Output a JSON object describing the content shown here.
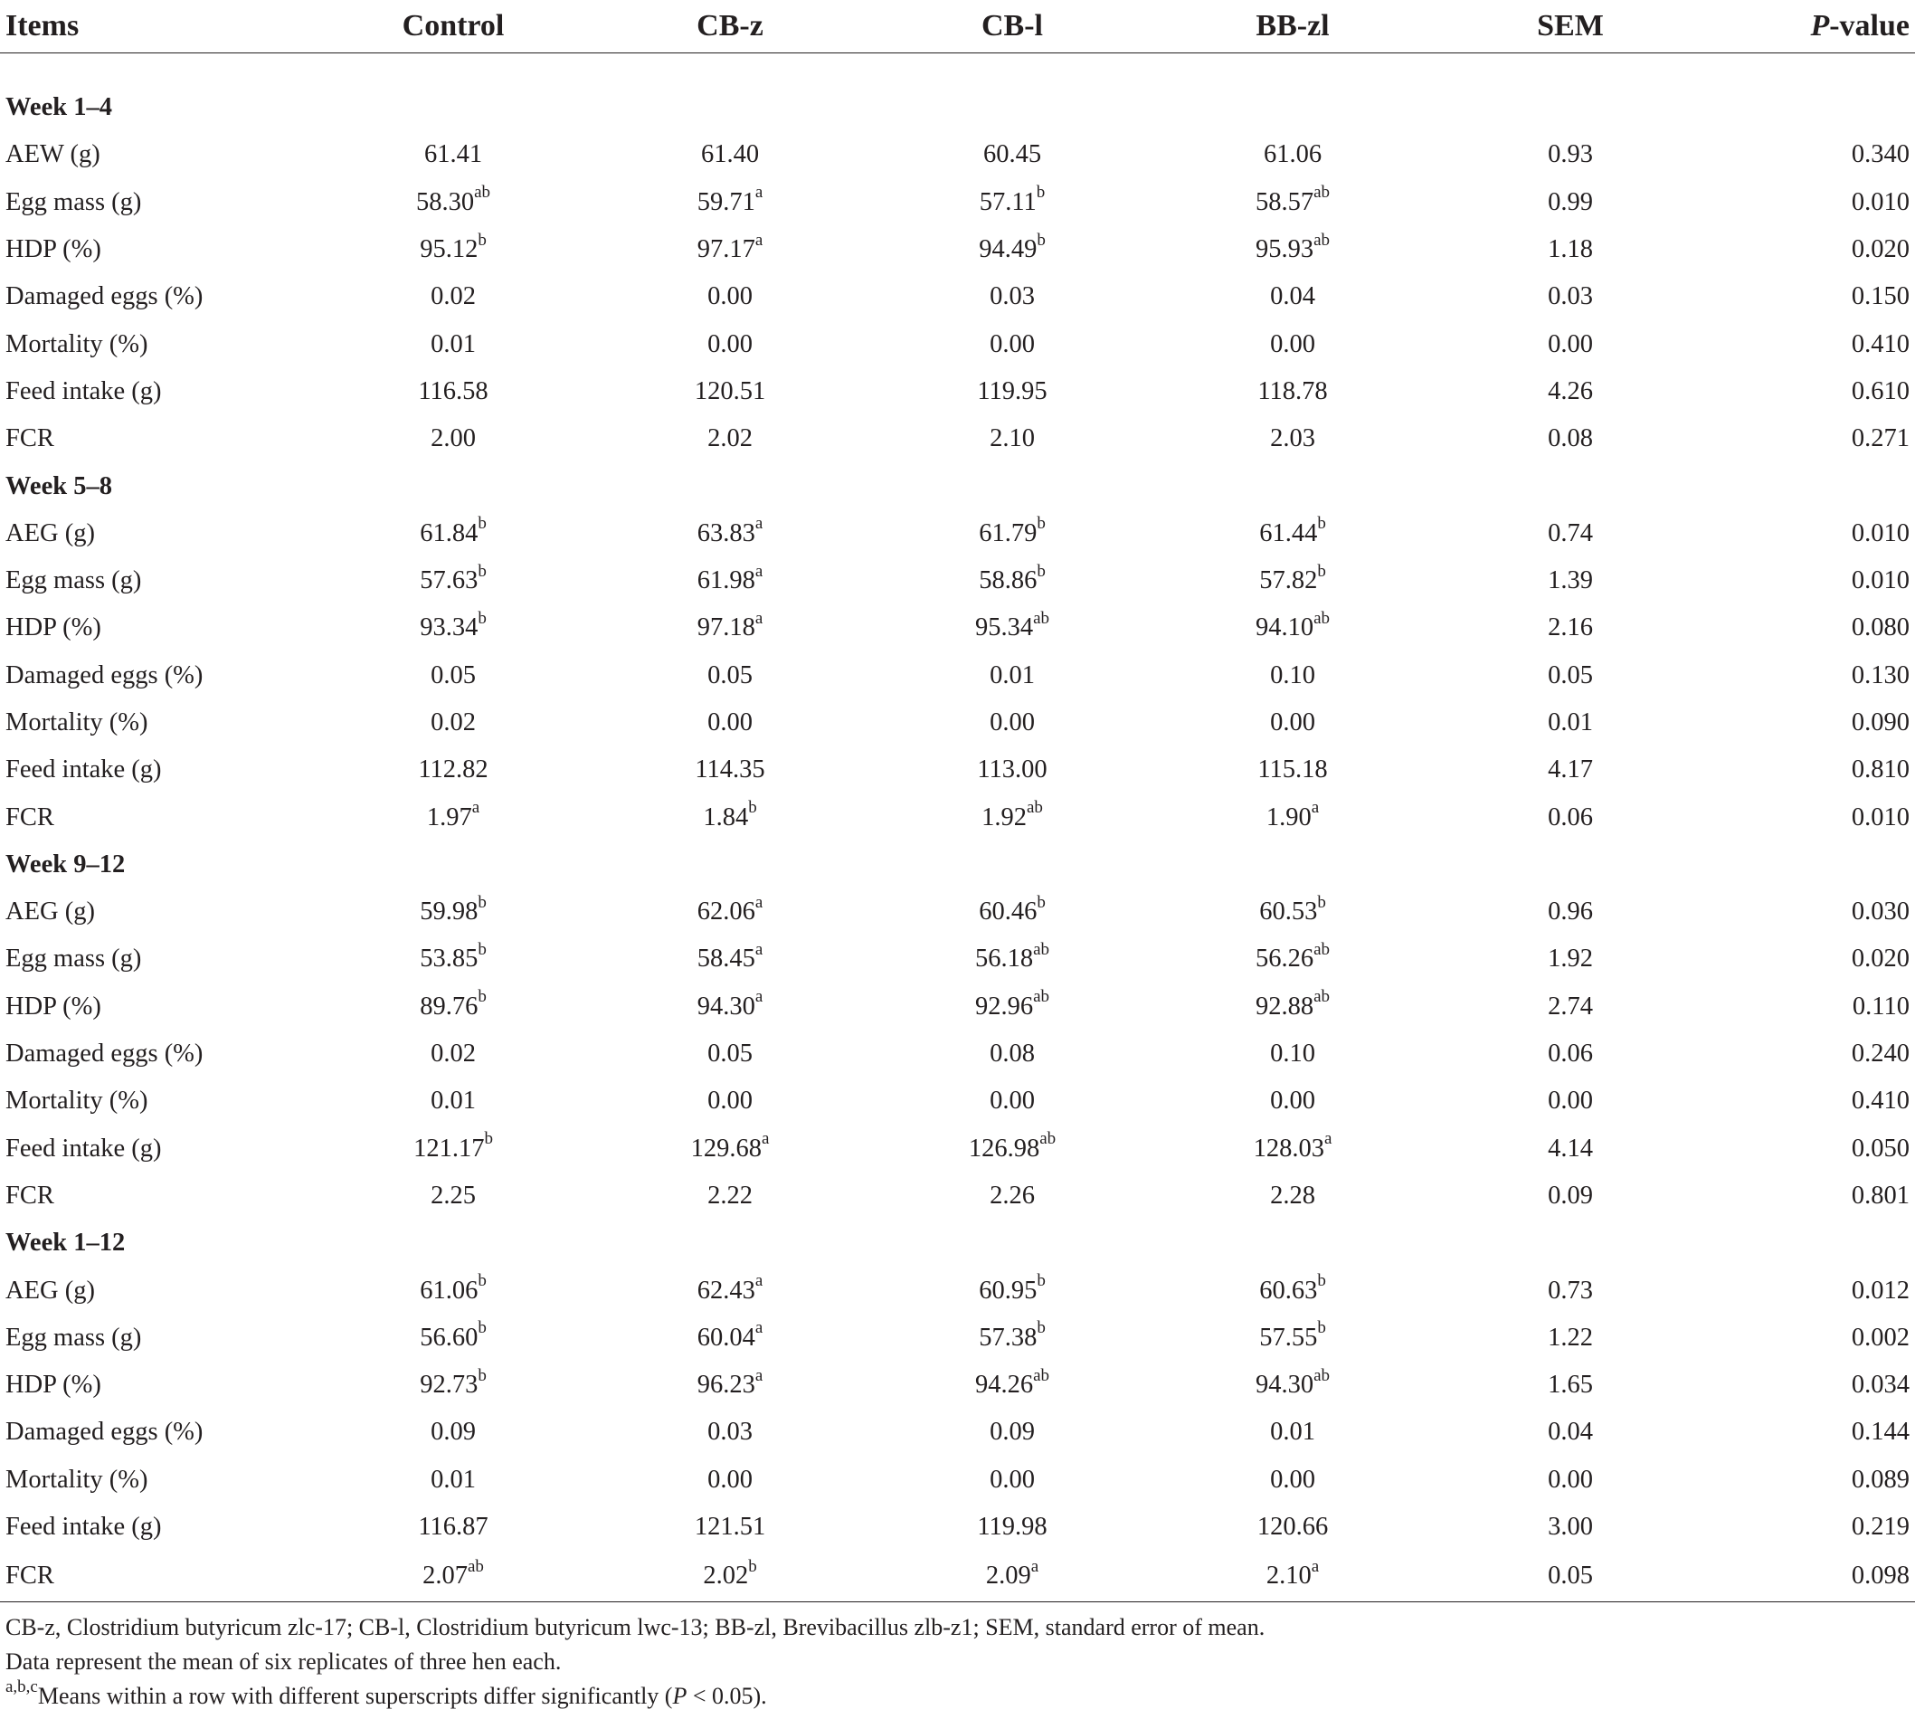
{
  "headers": [
    "Items",
    "Control",
    "CB-z",
    "CB-l",
    "BB-zl",
    "SEM",
    "P",
    "-value"
  ],
  "sections": [
    {
      "title": "Week 1–4",
      "rows": [
        {
          "item": "AEW (g)",
          "v": [
            [
              "61.41",
              ""
            ],
            [
              "61.40",
              ""
            ],
            [
              "60.45",
              ""
            ],
            [
              "61.06",
              ""
            ]
          ],
          "sem": "0.93",
          "p": "0.340"
        },
        {
          "item": "Egg mass (g)",
          "v": [
            [
              "58.30",
              "ab"
            ],
            [
              "59.71",
              "a"
            ],
            [
              "57.11",
              "b"
            ],
            [
              "58.57",
              "ab"
            ]
          ],
          "sem": "0.99",
          "p": "0.010"
        },
        {
          "item": "HDP (%)",
          "v": [
            [
              "95.12",
              "b"
            ],
            [
              "97.17",
              "a"
            ],
            [
              "94.49",
              "b"
            ],
            [
              "95.93",
              "ab"
            ]
          ],
          "sem": "1.18",
          "p": "0.020"
        },
        {
          "item": "Damaged eggs (%)",
          "v": [
            [
              "0.02",
              ""
            ],
            [
              "0.00",
              ""
            ],
            [
              "0.03",
              ""
            ],
            [
              "0.04",
              ""
            ]
          ],
          "sem": "0.03",
          "p": "0.150"
        },
        {
          "item": "Mortality (%)",
          "v": [
            [
              "0.01",
              ""
            ],
            [
              "0.00",
              ""
            ],
            [
              "0.00",
              ""
            ],
            [
              "0.00",
              ""
            ]
          ],
          "sem": "0.00",
          "p": "0.410"
        },
        {
          "item": "Feed intake (g)",
          "v": [
            [
              "116.58",
              ""
            ],
            [
              "120.51",
              ""
            ],
            [
              "119.95",
              ""
            ],
            [
              "118.78",
              ""
            ]
          ],
          "sem": "4.26",
          "p": "0.610"
        },
        {
          "item": "FCR",
          "v": [
            [
              "2.00",
              ""
            ],
            [
              "2.02",
              ""
            ],
            [
              "2.10",
              ""
            ],
            [
              "2.03",
              ""
            ]
          ],
          "sem": "0.08",
          "p": "0.271"
        }
      ]
    },
    {
      "title": "Week 5–8",
      "rows": [
        {
          "item": "AEG (g)",
          "v": [
            [
              "61.84",
              "b"
            ],
            [
              "63.83",
              "a"
            ],
            [
              "61.79",
              "b"
            ],
            [
              "61.44",
              "b"
            ]
          ],
          "sem": "0.74",
          "p": "0.010"
        },
        {
          "item": "Egg mass (g)",
          "v": [
            [
              "57.63",
              "b"
            ],
            [
              "61.98",
              "a"
            ],
            [
              "58.86",
              "b"
            ],
            [
              "57.82",
              "b"
            ]
          ],
          "sem": "1.39",
          "p": "0.010"
        },
        {
          "item": "HDP (%)",
          "v": [
            [
              "93.34",
              "b"
            ],
            [
              "97.18",
              "a"
            ],
            [
              "95.34",
              "ab"
            ],
            [
              "94.10",
              "ab"
            ]
          ],
          "sem": "2.16",
          "p": "0.080"
        },
        {
          "item": "Damaged eggs (%)",
          "v": [
            [
              "0.05",
              ""
            ],
            [
              "0.05",
              ""
            ],
            [
              "0.01",
              ""
            ],
            [
              "0.10",
              ""
            ]
          ],
          "sem": "0.05",
          "p": "0.130"
        },
        {
          "item": "Mortality (%)",
          "v": [
            [
              "0.02",
              ""
            ],
            [
              "0.00",
              ""
            ],
            [
              "0.00",
              ""
            ],
            [
              "0.00",
              ""
            ]
          ],
          "sem": "0.01",
          "p": "0.090"
        },
        {
          "item": "Feed intake (g)",
          "v": [
            [
              "112.82",
              ""
            ],
            [
              "114.35",
              ""
            ],
            [
              "113.00",
              ""
            ],
            [
              "115.18",
              ""
            ]
          ],
          "sem": "4.17",
          "p": "0.810"
        },
        {
          "item": "FCR",
          "v": [
            [
              "1.97",
              "a"
            ],
            [
              "1.84",
              "b"
            ],
            [
              "1.92",
              "ab"
            ],
            [
              "1.90",
              "a"
            ]
          ],
          "sem": "0.06",
          "p": "0.010"
        }
      ]
    },
    {
      "title": "Week 9–12",
      "rows": [
        {
          "item": "AEG (g)",
          "v": [
            [
              "59.98",
              "b"
            ],
            [
              "62.06",
              "a"
            ],
            [
              "60.46",
              "b"
            ],
            [
              "60.53",
              "b"
            ]
          ],
          "sem": "0.96",
          "p": "0.030"
        },
        {
          "item": "Egg mass (g)",
          "v": [
            [
              "53.85",
              "b"
            ],
            [
              "58.45",
              "a"
            ],
            [
              "56.18",
              "ab"
            ],
            [
              "56.26",
              "ab"
            ]
          ],
          "sem": "1.92",
          "p": "0.020"
        },
        {
          "item": "HDP (%)",
          "v": [
            [
              "89.76",
              "b"
            ],
            [
              "94.30",
              "a"
            ],
            [
              "92.96",
              "ab"
            ],
            [
              "92.88",
              "ab"
            ]
          ],
          "sem": "2.74",
          "p": "0.110"
        },
        {
          "item": "Damaged eggs (%)",
          "v": [
            [
              "0.02",
              ""
            ],
            [
              "0.05",
              ""
            ],
            [
              "0.08",
              ""
            ],
            [
              "0.10",
              ""
            ]
          ],
          "sem": "0.06",
          "p": "0.240"
        },
        {
          "item": "Mortality (%)",
          "v": [
            [
              "0.01",
              ""
            ],
            [
              "0.00",
              ""
            ],
            [
              "0.00",
              ""
            ],
            [
              "0.00",
              ""
            ]
          ],
          "sem": "0.00",
          "p": "0.410"
        },
        {
          "item": "Feed intake (g)",
          "v": [
            [
              "121.17",
              "b"
            ],
            [
              "129.68",
              "a"
            ],
            [
              "126.98",
              "ab"
            ],
            [
              "128.03",
              "a"
            ]
          ],
          "sem": "4.14",
          "p": "0.050"
        },
        {
          "item": "FCR",
          "v": [
            [
              "2.25",
              ""
            ],
            [
              "2.22",
              ""
            ],
            [
              "2.26",
              ""
            ],
            [
              "2.28",
              ""
            ]
          ],
          "sem": "0.09",
          "p": "0.801"
        }
      ]
    },
    {
      "title": "Week 1–12",
      "rows": [
        {
          "item": "AEG (g)",
          "v": [
            [
              "61.06",
              "b"
            ],
            [
              "62.43",
              "a"
            ],
            [
              "60.95",
              "b"
            ],
            [
              "60.63",
              "b"
            ]
          ],
          "sem": "0.73",
          "p": "0.012"
        },
        {
          "item": "Egg mass (g)",
          "v": [
            [
              "56.60",
              "b"
            ],
            [
              "60.04",
              "a"
            ],
            [
              "57.38",
              "b"
            ],
            [
              "57.55",
              "b"
            ]
          ],
          "sem": "1.22",
          "p": "0.002"
        },
        {
          "item": "HDP (%)",
          "v": [
            [
              "92.73",
              "b"
            ],
            [
              "96.23",
              "a"
            ],
            [
              "94.26",
              "ab"
            ],
            [
              "94.30",
              "ab"
            ]
          ],
          "sem": "1.65",
          "p": "0.034"
        },
        {
          "item": "Damaged eggs (%)",
          "v": [
            [
              "0.09",
              ""
            ],
            [
              "0.03",
              ""
            ],
            [
              "0.09",
              ""
            ],
            [
              "0.01",
              ""
            ]
          ],
          "sem": "0.04",
          "p": "0.144"
        },
        {
          "item": "Mortality (%)",
          "v": [
            [
              "0.01",
              ""
            ],
            [
              "0.00",
              ""
            ],
            [
              "0.00",
              ""
            ],
            [
              "0.00",
              ""
            ]
          ],
          "sem": "0.00",
          "p": "0.089"
        },
        {
          "item": "Feed intake (g)",
          "v": [
            [
              "116.87",
              ""
            ],
            [
              "121.51",
              ""
            ],
            [
              "119.98",
              ""
            ],
            [
              "120.66",
              ""
            ]
          ],
          "sem": "3.00",
          "p": "0.219"
        },
        {
          "item": "FCR",
          "v": [
            [
              "2.07",
              "ab"
            ],
            [
              "2.02",
              "b"
            ],
            [
              "2.09",
              "a"
            ],
            [
              "2.10",
              "a"
            ]
          ],
          "sem": "0.05",
          "p": "0.098"
        }
      ]
    }
  ],
  "footnotes": {
    "line1": "CB-z, Clostridium butyricum zlc-17; CB-l, Clostridium butyricum lwc-13; BB-zl, Brevibacillus zlb-z1; SEM, standard error of mean.",
    "line2": "Data represent the mean of six replicates of three hen each.",
    "line3_sup": "a,b,c",
    "line3_a": "Means within a row with different superscripts differ significantly (",
    "line3_p": "P",
    "line3_b": " < 0.05)."
  }
}
